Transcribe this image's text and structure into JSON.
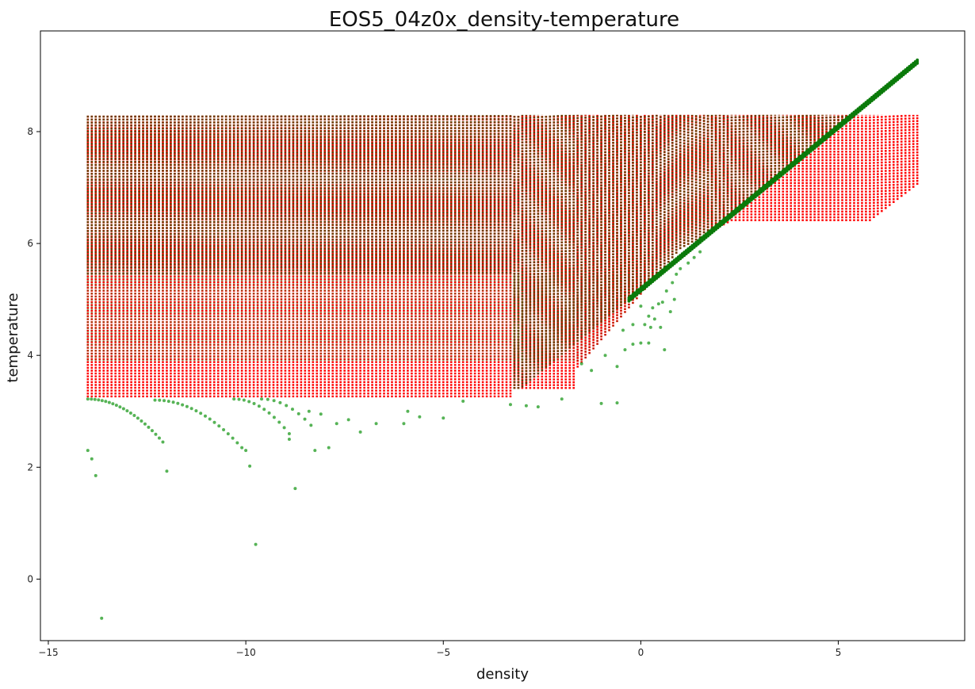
{
  "chart_data": {
    "type": "scatter",
    "title": "EOS5_04z0x_density-temperature",
    "xlabel": "density",
    "ylabel": "temperature",
    "xlim": [
      -15.2,
      8.2
    ],
    "ylim": [
      -1.1,
      9.8
    ],
    "x_ticks": [
      -15,
      -10,
      -5,
      0,
      5
    ],
    "y_ticks": [
      0,
      2,
      4,
      6,
      8
    ],
    "x_tick_labels": [
      "−15",
      "−10",
      "−5",
      "0",
      "5"
    ],
    "y_tick_labels": [
      "0",
      "2",
      "4",
      "6",
      "8"
    ],
    "grid": false,
    "legend": "none",
    "colors": {
      "grid_series": "#ff0000",
      "sample_series": "#2ca02c",
      "overlap_dark": "#6b3a00",
      "diagonal_dark": "#0a7a0a"
    },
    "grid_series": {
      "x_range": [
        -14.0,
        7.0
      ],
      "x_step": 0.1,
      "y_step": 0.05,
      "y_low_segments": [
        {
          "x": [
            -14.0,
            -3.25
          ],
          "y": 3.25
        },
        {
          "x": [
            -3.25,
            -1.7
          ],
          "y": 3.4
        },
        {
          "x": [
            -1.7,
            1.0
          ],
          "edge_from": [
            -1.7,
            3.7
          ],
          "edge_to": [
            1.0,
            5.9
          ]
        },
        {
          "x": [
            1.0,
            2.3
          ],
          "edge_from": [
            1.0,
            5.9
          ],
          "edge_to": [
            2.3,
            6.4
          ]
        },
        {
          "x": [
            2.3,
            5.8
          ],
          "y": 6.4
        },
        {
          "x": [
            5.8,
            7.0
          ],
          "edge_from": [
            5.8,
            6.4
          ],
          "edge_to": [
            7.0,
            7.05
          ]
        }
      ],
      "y_high": 8.3
    },
    "sample_series": {
      "x_range": [
        -14.0,
        7.0
      ],
      "y_high": 8.3,
      "y_low_left": 3.25,
      "diagonal": {
        "from": [
          -0.3,
          5.0
        ],
        "to": [
          7.0,
          9.25
        ]
      },
      "sparse_points": [
        {
          "x": -14.0,
          "y": 2.3
        },
        {
          "x": -13.9,
          "y": 2.15
        },
        {
          "x": -13.8,
          "y": 1.85
        },
        {
          "x": -13.65,
          "y": -0.7
        },
        {
          "x": -12.0,
          "y": 1.93
        },
        {
          "x": -10.0,
          "y": 2.3
        },
        {
          "x": -9.9,
          "y": 2.02
        },
        {
          "x": -9.75,
          "y": 0.62
        },
        {
          "x": -8.75,
          "y": 1.62
        },
        {
          "x": -8.25,
          "y": 2.3
        },
        {
          "x": -7.9,
          "y": 2.35
        },
        {
          "x": -8.9,
          "y": 2.5
        },
        {
          "x": -7.1,
          "y": 2.63
        },
        {
          "x": -6.7,
          "y": 2.78
        },
        {
          "x": -7.4,
          "y": 2.85
        },
        {
          "x": -7.7,
          "y": 2.78
        },
        {
          "x": -8.1,
          "y": 2.95
        },
        {
          "x": -8.4,
          "y": 3.0
        },
        {
          "x": -6.0,
          "y": 2.78
        },
        {
          "x": -5.6,
          "y": 2.9
        },
        {
          "x": -5.0,
          "y": 2.88
        },
        {
          "x": -5.9,
          "y": 3.0
        },
        {
          "x": -4.5,
          "y": 3.18
        },
        {
          "x": -3.3,
          "y": 3.12
        },
        {
          "x": -2.9,
          "y": 3.1
        },
        {
          "x": -2.6,
          "y": 3.08
        },
        {
          "x": -2.0,
          "y": 3.22
        },
        {
          "x": -1.0,
          "y": 3.14
        },
        {
          "x": -0.6,
          "y": 3.15
        },
        {
          "x": -1.25,
          "y": 3.73
        },
        {
          "x": -1.5,
          "y": 3.85
        },
        {
          "x": -0.9,
          "y": 4.0
        },
        {
          "x": -0.6,
          "y": 3.8
        },
        {
          "x": -0.4,
          "y": 4.1
        },
        {
          "x": -0.2,
          "y": 4.2
        },
        {
          "x": 0.0,
          "y": 4.22
        },
        {
          "x": 0.2,
          "y": 4.22
        },
        {
          "x": 0.25,
          "y": 4.5
        },
        {
          "x": 0.35,
          "y": 4.65
        },
        {
          "x": 0.5,
          "y": 4.5
        },
        {
          "x": 0.6,
          "y": 4.1
        },
        {
          "x": 0.75,
          "y": 4.78
        },
        {
          "x": 0.1,
          "y": 4.55
        },
        {
          "x": -0.2,
          "y": 4.55
        },
        {
          "x": 0.3,
          "y": 4.85
        },
        {
          "x": 0.55,
          "y": 4.95
        },
        {
          "x": 0.65,
          "y": 5.15
        },
        {
          "x": 0.8,
          "y": 5.3
        },
        {
          "x": 0.9,
          "y": 5.45
        },
        {
          "x": 1.0,
          "y": 5.55
        },
        {
          "x": 1.2,
          "y": 5.65
        },
        {
          "x": 1.35,
          "y": 5.75
        },
        {
          "x": 1.5,
          "y": 5.85
        },
        {
          "x": 0.85,
          "y": 5.0
        },
        {
          "x": 0.45,
          "y": 4.92
        },
        {
          "x": 0.2,
          "y": 4.7
        },
        {
          "x": 0.0,
          "y": 4.88
        },
        {
          "x": -0.45,
          "y": 4.45
        }
      ],
      "curves": [
        {
          "from": [
            -14.0,
            3.22
          ],
          "to": [
            -12.1,
            2.45
          ],
          "n": 22
        },
        {
          "from": [
            -12.3,
            3.2
          ],
          "to": [
            -10.1,
            2.35
          ],
          "n": 20
        },
        {
          "from": [
            -10.3,
            3.22
          ],
          "to": [
            -8.9,
            2.6
          ],
          "n": 12
        },
        {
          "from": [
            -9.6,
            3.22
          ],
          "to": [
            -8.35,
            2.75
          ],
          "n": 9
        }
      ]
    }
  }
}
